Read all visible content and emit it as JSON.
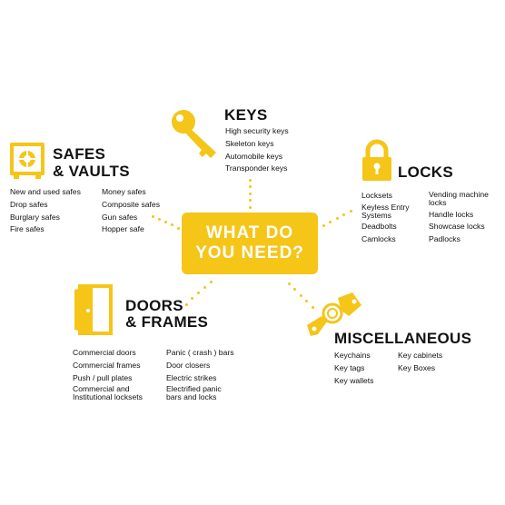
{
  "center": {
    "line1": "WHAT DO",
    "line2": "YOU NEED?"
  },
  "colors": {
    "accent": "#f5c518",
    "text": "#111111"
  },
  "keys": {
    "icon": "key-icon",
    "title": "KEYS",
    "items": [
      "High security keys",
      "Skeleton keys",
      "Automobile keys",
      "Transponder keys"
    ]
  },
  "safes": {
    "icon": "safe-icon",
    "title_line1": "SAFES",
    "title_line2": "& VAULTS",
    "col1": [
      "New and used safes",
      "Drop safes",
      "Burglary safes",
      "Fire safes"
    ],
    "col2": [
      "Money safes",
      "Composite safes",
      "Gun safes",
      "Hopper safe"
    ]
  },
  "locks": {
    "icon": "padlock-icon",
    "title": "LOCKS",
    "col1": [
      "Locksets",
      "Keyless Entry\nSystems",
      "Deadbolts",
      "Camlocks"
    ],
    "col2": [
      "Vending machine\nlocks",
      "Handle locks",
      "Showcase locks",
      "Padlocks"
    ]
  },
  "doors": {
    "icon": "door-icon",
    "title_line1": "DOORS",
    "title_line2": "& FRAMES",
    "col1": [
      "Commercial doors",
      "Commercial frames",
      "Push / pull plates",
      "Commercial and\nInstitutional locksets"
    ],
    "col2": [
      "Panic ( crash ) bars",
      "Door closers",
      "Electric strikes",
      "Electrified panic\nbars and locks"
    ]
  },
  "misc": {
    "icon": "keychain-icon",
    "title": "MISCELLANEOUS",
    "col1": [
      "Keychains",
      "Key tags",
      "Key wallets"
    ],
    "col2": [
      "Key cabinets",
      "Key Boxes"
    ]
  }
}
